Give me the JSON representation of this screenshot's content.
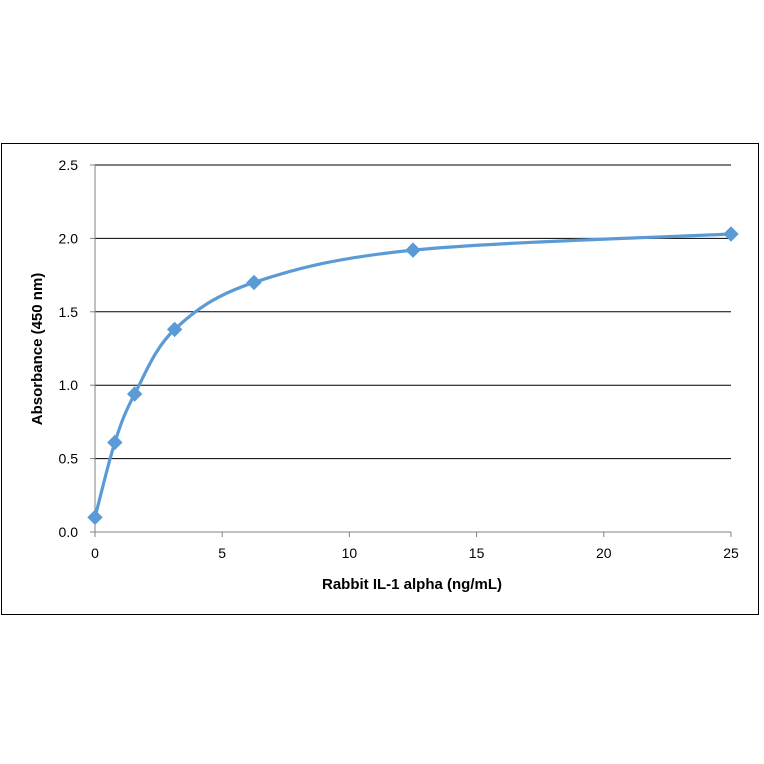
{
  "chart_data": {
    "type": "line",
    "title": "",
    "xlabel": "Rabbit IL-1 alpha (ng/mL)",
    "ylabel": "Absorbance  (450 nm)",
    "xlim": [
      0,
      25
    ],
    "ylim": [
      0,
      2.5
    ],
    "x_ticks": [
      "0",
      "5",
      "10",
      "15",
      "20",
      "25"
    ],
    "y_ticks": [
      "0.0",
      "0.5",
      "1.0",
      "1.5",
      "2.0",
      "2.5"
    ],
    "grid": "horizontal",
    "legend": "none",
    "marker": "diamond",
    "smooth": true,
    "color": "#5b9bd5",
    "series": [
      {
        "x": [
          0,
          0.78,
          1.56,
          3.13,
          6.25,
          12.5,
          25
        ],
        "y": [
          0.1,
          0.61,
          0.94,
          1.38,
          1.7,
          1.92,
          2.03
        ]
      }
    ]
  }
}
